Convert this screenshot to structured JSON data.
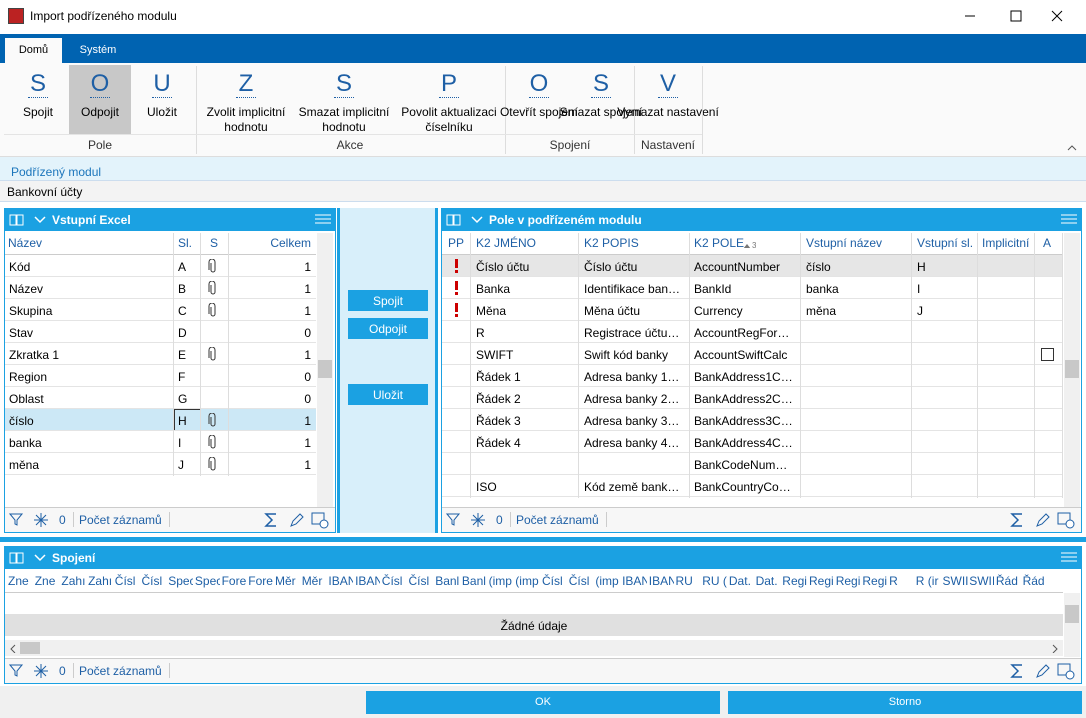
{
  "window": {
    "title": "Import podřízeného modulu"
  },
  "tabs": [
    "Domů",
    "Systém"
  ],
  "ribbon": {
    "groups": [
      {
        "label": "Pole",
        "buttons": [
          {
            "letter": "S",
            "label": "Spojit"
          },
          {
            "letter": "O",
            "label": "Odpojit"
          },
          {
            "letter": "U",
            "label": "Uložit"
          }
        ]
      },
      {
        "label": "Akce",
        "buttons": [
          {
            "letter": "Z",
            "label": "Zvolit implicitní hodnotu"
          },
          {
            "letter": "S",
            "label": "Smazat implicitní hodnotu"
          },
          {
            "letter": "P",
            "label": "Povolit aktualizaci číselníku"
          }
        ]
      },
      {
        "label": "Spojení",
        "buttons": [
          {
            "letter": "O",
            "label": "Otevřít spojení"
          },
          {
            "letter": "S",
            "label": "Smazat spojení"
          }
        ]
      },
      {
        "label": "Nastavení",
        "buttons": [
          {
            "letter": "V",
            "label": "Vymazat nastavení"
          }
        ]
      }
    ]
  },
  "module": {
    "label": "Podřízený modul",
    "value": "Bankovní účty"
  },
  "left_panel": {
    "title": "Vstupní Excel",
    "columns": [
      "Název",
      "Sl.",
      "S",
      "Celkem"
    ],
    "rows": [
      [
        "Kód",
        "A",
        1
      ],
      [
        "Název",
        "B",
        1
      ],
      [
        "Skupina",
        "C",
        1
      ],
      [
        "Stav",
        "D",
        0
      ],
      [
        "Zkratka 1",
        "E",
        1
      ],
      [
        "Region",
        "F",
        0
      ],
      [
        "Oblast",
        "G",
        0
      ],
      [
        "číslo",
        "H",
        1
      ],
      [
        "banka",
        "I",
        1
      ],
      [
        "měna",
        "J",
        1
      ]
    ],
    "attached": [
      true,
      true,
      true,
      false,
      true,
      false,
      false,
      true,
      true,
      true
    ],
    "filter_count": 0,
    "footer": "Počet záznamů"
  },
  "middle_buttons": [
    "Spojit",
    "Odpojit",
    "Uložit"
  ],
  "right_panel": {
    "title": "Pole v podřízeném modulu",
    "columns": [
      "PP",
      "K2 JMÉNO",
      "K2 POPIS",
      "K2 POLE",
      "Vstupní název",
      "Vstupní sl.",
      "Implicitní",
      "A"
    ],
    "sort_order": 3,
    "rows": [
      {
        "required": true,
        "cells": [
          "Číslo účtu",
          "Číslo účtu",
          "AccountNumber",
          "číslo",
          "H",
          null
        ],
        "checkbox": false
      },
      {
        "required": true,
        "cells": [
          "Banka",
          "Identifikace ban…",
          "BankId",
          "banka",
          "I",
          null
        ],
        "checkbox": false
      },
      {
        "required": true,
        "cells": [
          "Měna",
          "Měna účtu",
          "Currency",
          "měna",
          "J",
          null
        ],
        "checkbox": false
      },
      {
        "required": false,
        "cells": [
          "R",
          "Registrace účtu…",
          "AccountRegFor…",
          null,
          null,
          null
        ],
        "checkbox": false
      },
      {
        "required": false,
        "cells": [
          "SWIFT",
          "Swift kód banky",
          "AccountSwiftCalc",
          null,
          null,
          null
        ],
        "checkbox": true
      },
      {
        "required": false,
        "cells": [
          "Řádek 1",
          "Adresa banky 1…",
          "BankAddress1C…",
          null,
          null,
          null
        ],
        "checkbox": false
      },
      {
        "required": false,
        "cells": [
          "Řádek 2",
          "Adresa banky 2…",
          "BankAddress2C…",
          null,
          null,
          null
        ],
        "checkbox": false
      },
      {
        "required": false,
        "cells": [
          "Řádek 3",
          "Adresa banky 3…",
          "BankAddress3C…",
          null,
          null,
          null
        ],
        "checkbox": false
      },
      {
        "required": false,
        "cells": [
          "Řádek 4",
          "Adresa banky 4…",
          "BankAddress4C…",
          null,
          null,
          null
        ],
        "checkbox": false
      },
      {
        "required": false,
        "cells": [
          null,
          null,
          "BankCodeNum…",
          null,
          null,
          null
        ],
        "checkbox": false
      },
      {
        "required": false,
        "cells": [
          "ISO",
          "Kód země bank…",
          "BankCountryCo…",
          null,
          null,
          null
        ],
        "checkbox": false
      }
    ],
    "filter_count": 0,
    "footer": "Počet záznamů"
  },
  "bottom_panel": {
    "title": "Spojení",
    "columns": [
      "Zne",
      "Zne",
      "Zahı",
      "Zahı",
      "Čísl",
      "Čísl",
      "Spec",
      "Spec",
      "Fore",
      "Fore",
      "Měr",
      "Měr",
      "IBAN",
      "IBAN",
      "Čísl",
      "Čísl",
      "Banl",
      "Banl",
      "(imp",
      "(imp",
      "Čísl",
      "Čísl",
      "(imp",
      "IBAN",
      "IBAN",
      "RU",
      "RU (",
      "Dat.",
      "Dat.",
      "Regi",
      "Regi",
      "Regi",
      "Regi",
      "R",
      "R (ir",
      "SWII",
      "SWII",
      "Řád",
      "Řád"
    ],
    "empty_message": "Žádné údaje",
    "filter_count": 0,
    "footer": "Počet záznamů"
  },
  "dialog_buttons": [
    "OK",
    "Storno"
  ]
}
